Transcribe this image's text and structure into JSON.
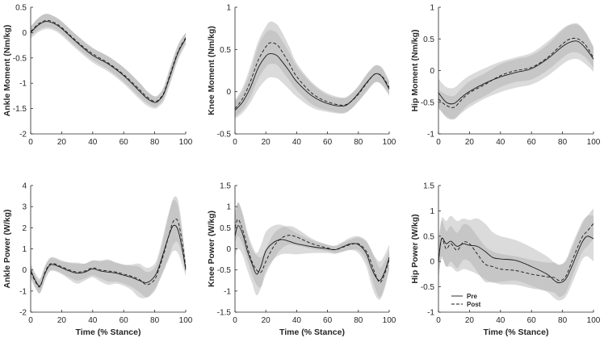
{
  "chart_data": [
    {
      "type": "line",
      "ylabel": "Ankle Moment (Nm/kg)",
      "xlabel": "",
      "xlim": [
        0,
        100
      ],
      "ylim": [
        -2,
        0.5
      ],
      "xticks": [
        0,
        20,
        40,
        60,
        80,
        100
      ],
      "yticks": [
        -2,
        -1.5,
        -1,
        -0.5,
        0,
        0.5
      ],
      "ytick_labels": [
        "-2",
        "-1.5",
        "-1",
        "-0.5",
        "0",
        "0.5"
      ],
      "x": [
        0,
        5,
        10,
        15,
        20,
        30,
        40,
        50,
        60,
        70,
        75,
        80,
        83,
        86,
        90,
        95,
        100
      ],
      "series": [
        {
          "name": "Pre",
          "style": "solid",
          "values": [
            0.0,
            0.15,
            0.22,
            0.18,
            0.08,
            -0.2,
            -0.45,
            -0.62,
            -0.85,
            -1.15,
            -1.3,
            -1.38,
            -1.33,
            -1.2,
            -0.85,
            -0.4,
            -0.12
          ],
          "band": [
            0.12,
            0.14,
            0.15,
            0.14,
            0.14,
            0.14,
            0.14,
            0.15,
            0.16,
            0.16,
            0.14,
            0.12,
            0.12,
            0.14,
            0.16,
            0.15,
            0.12
          ]
        },
        {
          "name": "Post",
          "style": "dashed",
          "values": [
            0.02,
            0.17,
            0.24,
            0.2,
            0.1,
            -0.18,
            -0.42,
            -0.6,
            -0.83,
            -1.12,
            -1.27,
            -1.36,
            -1.31,
            -1.18,
            -0.82,
            -0.38,
            -0.1
          ],
          "band": [
            0.1,
            0.12,
            0.13,
            0.12,
            0.12,
            0.12,
            0.12,
            0.13,
            0.14,
            0.14,
            0.12,
            0.1,
            0.1,
            0.12,
            0.14,
            0.13,
            0.1
          ]
        }
      ]
    },
    {
      "type": "line",
      "ylabel": "Knee Moment (Nm/kg)",
      "xlabel": "",
      "xlim": [
        0,
        100
      ],
      "ylim": [
        -0.5,
        1
      ],
      "xticks": [
        0,
        20,
        40,
        60,
        80,
        100
      ],
      "yticks": [
        -0.5,
        0,
        0.5,
        1
      ],
      "ytick_labels": [
        "-0.5",
        "0",
        "0.5",
        "1"
      ],
      "x": [
        0,
        5,
        10,
        15,
        20,
        23,
        27,
        30,
        35,
        40,
        50,
        60,
        70,
        75,
        80,
        85,
        90,
        93,
        96,
        100
      ],
      "series": [
        {
          "name": "Pre",
          "style": "solid",
          "values": [
            -0.22,
            -0.12,
            0.05,
            0.28,
            0.42,
            0.45,
            0.43,
            0.37,
            0.25,
            0.12,
            -0.05,
            -0.14,
            -0.17,
            -0.12,
            -0.02,
            0.1,
            0.2,
            0.21,
            0.16,
            0.03
          ],
          "band": [
            0.1,
            0.13,
            0.18,
            0.25,
            0.28,
            0.28,
            0.27,
            0.25,
            0.22,
            0.18,
            0.14,
            0.1,
            0.09,
            0.09,
            0.09,
            0.1,
            0.1,
            0.1,
            0.1,
            0.08
          ]
        },
        {
          "name": "Post",
          "style": "dashed",
          "values": [
            -0.2,
            -0.08,
            0.12,
            0.37,
            0.53,
            0.58,
            0.56,
            0.49,
            0.34,
            0.18,
            -0.02,
            -0.12,
            -0.16,
            -0.12,
            -0.03,
            0.09,
            0.2,
            0.21,
            0.17,
            0.05
          ],
          "band": [
            0.1,
            0.13,
            0.18,
            0.22,
            0.24,
            0.25,
            0.24,
            0.23,
            0.2,
            0.16,
            0.13,
            0.1,
            0.09,
            0.09,
            0.09,
            0.1,
            0.1,
            0.1,
            0.1,
            0.08
          ]
        }
      ]
    },
    {
      "type": "line",
      "ylabel": "Hip Moment (Nm/kg)",
      "xlabel": "",
      "xlim": [
        0,
        100
      ],
      "ylim": [
        -1,
        1
      ],
      "xticks": [
        0,
        20,
        40,
        60,
        80,
        100
      ],
      "yticks": [
        -1,
        -0.5,
        0,
        0.5,
        1
      ],
      "ytick_labels": [
        "-1",
        "-0.5",
        "0",
        "0.5",
        "1"
      ],
      "x": [
        0,
        5,
        10,
        15,
        20,
        30,
        40,
        50,
        60,
        70,
        80,
        85,
        90,
        95,
        100
      ],
      "series": [
        {
          "name": "Pre",
          "style": "solid",
          "values": [
            -0.35,
            -0.5,
            -0.52,
            -0.42,
            -0.33,
            -0.2,
            -0.1,
            -0.03,
            0.03,
            0.18,
            0.38,
            0.45,
            0.46,
            0.35,
            0.18
          ],
          "band": [
            0.22,
            0.24,
            0.25,
            0.25,
            0.25,
            0.24,
            0.24,
            0.24,
            0.25,
            0.27,
            0.28,
            0.28,
            0.28,
            0.25,
            0.2
          ]
        },
        {
          "name": "Post",
          "style": "dashed",
          "values": [
            -0.45,
            -0.55,
            -0.58,
            -0.46,
            -0.35,
            -0.22,
            -0.08,
            0.0,
            0.05,
            0.2,
            0.42,
            0.5,
            0.5,
            0.4,
            0.2
          ],
          "band": [
            0.15,
            0.17,
            0.18,
            0.18,
            0.18,
            0.18,
            0.18,
            0.18,
            0.19,
            0.2,
            0.22,
            0.22,
            0.22,
            0.2,
            0.16
          ]
        }
      ]
    },
    {
      "type": "line",
      "ylabel": "Ankle Power (W/kg)",
      "xlabel": "Time (% Stance)",
      "xlim": [
        0,
        100
      ],
      "ylim": [
        -2,
        4
      ],
      "xticks": [
        0,
        20,
        40,
        60,
        80,
        100
      ],
      "yticks": [
        -2,
        -1,
        0,
        1,
        2,
        3,
        4
      ],
      "ytick_labels": [
        "-2",
        "-1",
        "0",
        "1",
        "2",
        "3",
        "4"
      ],
      "x": [
        0,
        3,
        6,
        9,
        12,
        15,
        20,
        25,
        30,
        35,
        40,
        45,
        50,
        55,
        60,
        65,
        70,
        75,
        80,
        83,
        86,
        89,
        92,
        95,
        98,
        100
      ],
      "series": [
        {
          "name": "Pre",
          "style": "solid",
          "values": [
            0.0,
            -0.5,
            -0.75,
            -0.2,
            0.2,
            0.25,
            0.1,
            -0.05,
            -0.15,
            -0.1,
            0.05,
            -0.05,
            -0.1,
            -0.15,
            -0.25,
            -0.35,
            -0.5,
            -0.6,
            -0.3,
            0.2,
            0.9,
            1.6,
            2.1,
            1.9,
            0.9,
            0.0
          ],
          "band": [
            0.3,
            0.35,
            0.35,
            0.35,
            0.3,
            0.3,
            0.3,
            0.4,
            0.5,
            0.4,
            0.4,
            0.5,
            0.6,
            0.5,
            0.5,
            0.6,
            0.8,
            0.7,
            0.6,
            0.7,
            0.9,
            1.1,
            1.2,
            1.1,
            0.7,
            0.3
          ]
        },
        {
          "name": "Post",
          "style": "dashed",
          "values": [
            -0.1,
            -0.55,
            -0.8,
            -0.15,
            0.25,
            0.3,
            0.15,
            0.0,
            -0.1,
            -0.05,
            0.1,
            0.0,
            -0.05,
            -0.1,
            -0.2,
            -0.3,
            -0.45,
            -0.7,
            -0.45,
            0.1,
            0.8,
            1.6,
            2.3,
            2.3,
            1.2,
            0.1
          ],
          "band": [
            0.3,
            0.3,
            0.3,
            0.3,
            0.3,
            0.3,
            0.3,
            0.35,
            0.4,
            0.35,
            0.35,
            0.4,
            0.5,
            0.45,
            0.45,
            0.5,
            0.6,
            0.6,
            0.55,
            0.6,
            0.8,
            1.0,
            1.1,
            1.0,
            0.6,
            0.3
          ]
        }
      ]
    },
    {
      "type": "line",
      "ylabel": "Knee Power (W/kg)",
      "xlabel": "Time (% Stance)",
      "xlim": [
        0,
        100
      ],
      "ylim": [
        -1.5,
        1.5
      ],
      "xticks": [
        0,
        20,
        40,
        60,
        80,
        100
      ],
      "yticks": [
        -1.5,
        -1,
        -0.5,
        0,
        0.5,
        1,
        1.5
      ],
      "ytick_labels": [
        "-1.5",
        "-1",
        "-0.5",
        "0",
        "0.5",
        "1",
        "1.5"
      ],
      "x": [
        0,
        2,
        5,
        8,
        11,
        14,
        17,
        20,
        25,
        30,
        35,
        40,
        50,
        60,
        65,
        70,
        75,
        80,
        85,
        88,
        91,
        94,
        97,
        100
      ],
      "series": [
        {
          "name": "Pre",
          "style": "solid",
          "values": [
            0.3,
            0.55,
            0.35,
            -0.05,
            -0.35,
            -0.6,
            -0.4,
            -0.05,
            0.15,
            0.22,
            0.18,
            0.12,
            0.05,
            0.0,
            -0.02,
            0.05,
            0.12,
            0.1,
            -0.1,
            -0.4,
            -0.65,
            -0.75,
            -0.55,
            -0.2
          ],
          "band": [
            0.5,
            0.55,
            0.5,
            0.45,
            0.45,
            0.5,
            0.5,
            0.45,
            0.4,
            0.35,
            0.3,
            0.25,
            0.15,
            0.1,
            0.1,
            0.12,
            0.15,
            0.2,
            0.3,
            0.4,
            0.45,
            0.45,
            0.4,
            0.3
          ]
        },
        {
          "name": "Post",
          "style": "dashed",
          "values": [
            0.5,
            0.7,
            0.45,
            0.05,
            -0.3,
            -0.5,
            -0.55,
            -0.3,
            0.05,
            0.25,
            0.32,
            0.28,
            0.12,
            0.02,
            -0.02,
            0.04,
            0.1,
            0.12,
            -0.05,
            -0.3,
            -0.6,
            -0.8,
            -0.6,
            -0.25
          ],
          "band": [
            0.35,
            0.4,
            0.35,
            0.3,
            0.3,
            0.35,
            0.35,
            0.3,
            0.3,
            0.25,
            0.22,
            0.2,
            0.12,
            0.08,
            0.08,
            0.1,
            0.12,
            0.15,
            0.22,
            0.3,
            0.35,
            0.35,
            0.3,
            0.22
          ]
        }
      ]
    },
    {
      "type": "line",
      "ylabel": "Hip Power (W/kg)",
      "xlabel": "Time (% Stance)",
      "xlim": [
        0,
        100
      ],
      "ylim": [
        -1,
        1.5
      ],
      "xticks": [
        0,
        20,
        40,
        60,
        80,
        100
      ],
      "yticks": [
        -1,
        -0.5,
        0,
        0.5,
        1,
        1.5
      ],
      "ytick_labels": [
        "-1",
        "-0.5",
        "0",
        "0.5",
        "1",
        "1.5"
      ],
      "x": [
        0,
        2,
        5,
        8,
        12,
        16,
        20,
        25,
        30,
        35,
        40,
        50,
        60,
        70,
        75,
        78,
        82,
        86,
        90,
        93,
        96,
        100
      ],
      "series": [
        {
          "name": "Pre",
          "style": "solid",
          "values": [
            0.0,
            0.45,
            0.35,
            0.4,
            0.3,
            0.35,
            0.32,
            0.3,
            0.2,
            0.08,
            0.05,
            0.02,
            -0.1,
            -0.25,
            -0.38,
            -0.42,
            -0.35,
            -0.1,
            0.2,
            0.4,
            0.5,
            0.45
          ],
          "band": [
            0.35,
            0.4,
            0.45,
            0.5,
            0.5,
            0.5,
            0.5,
            0.55,
            0.55,
            0.5,
            0.45,
            0.4,
            0.38,
            0.35,
            0.35,
            0.35,
            0.35,
            0.35,
            0.35,
            0.35,
            0.4,
            0.45
          ]
        },
        {
          "name": "Post",
          "style": "dashed",
          "values": [
            0.0,
            0.45,
            0.25,
            0.35,
            0.22,
            0.38,
            0.35,
            0.15,
            -0.05,
            -0.1,
            -0.15,
            -0.18,
            -0.25,
            -0.3,
            -0.32,
            -0.38,
            -0.3,
            0.0,
            0.3,
            0.5,
            0.6,
            0.75
          ],
          "band": [
            0.3,
            0.35,
            0.35,
            0.35,
            0.35,
            0.35,
            0.35,
            0.35,
            0.35,
            0.3,
            0.3,
            0.28,
            0.28,
            0.28,
            0.3,
            0.32,
            0.32,
            0.32,
            0.3,
            0.3,
            0.3,
            0.3
          ]
        }
      ]
    }
  ],
  "legend": {
    "entries": [
      {
        "label": "Pre",
        "style": "solid"
      },
      {
        "label": "Post",
        "style": "dashed"
      }
    ],
    "panel": 5,
    "position": "bottom-left"
  },
  "colors": {
    "axis": "#262626",
    "line": "#1a1a1a",
    "band_pre": "#cfcfcf",
    "band_post": "#b2b2b2"
  }
}
